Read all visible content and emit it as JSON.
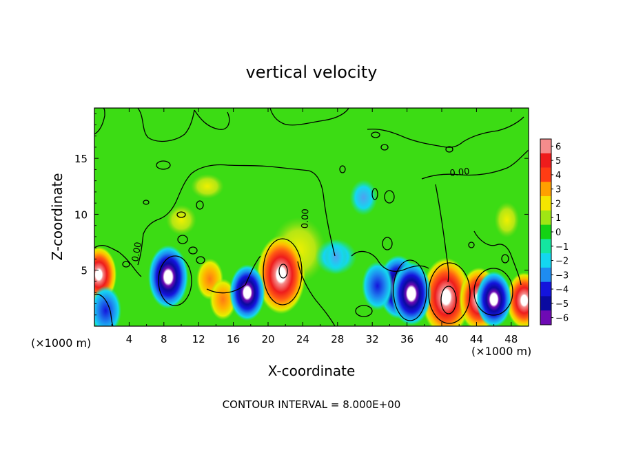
{
  "chart_data": {
    "type": "heatmap",
    "title": "vertical velocity",
    "xlabel": "X-coordinate",
    "ylabel": "Z-coordinate",
    "x_unit_left": "(×1000 m)",
    "x_unit_right": "(×1000 m)",
    "xlim": [
      0,
      50
    ],
    "ylim": [
      0,
      19.5
    ],
    "x_ticks": [
      4,
      8,
      12,
      16,
      20,
      24,
      28,
      32,
      36,
      40,
      44,
      48
    ],
    "x_tick_labels": [
      "4",
      "8",
      "12",
      "16",
      "20",
      "24",
      "28",
      "32",
      "36",
      "40",
      "44",
      "48"
    ],
    "y_ticks": [
      5,
      10,
      15
    ],
    "y_tick_labels": [
      "5",
      "10",
      "15"
    ],
    "contour_interval_text": "CONTOUR INTERVAL = 8.000E+00",
    "contour_labels": [
      {
        "text": "0.00",
        "x": 5.2,
        "y": 6.6,
        "rotate": -80
      },
      {
        "text": "0.00",
        "x": 24.6,
        "y": 9.6,
        "rotate": -88
      },
      {
        "text": "0.00",
        "x": 42.1,
        "y": 13.5,
        "rotate": -6
      }
    ],
    "colorbar": {
      "values": [
        6,
        5,
        4,
        3,
        2,
        1,
        0,
        -1,
        -2,
        -3,
        -4,
        -5,
        -6
      ],
      "labels": [
        "6",
        "5",
        "4",
        "3",
        "2",
        "1",
        "0",
        "−1",
        "−2",
        "−3",
        "−4",
        "−5",
        "−6"
      ],
      "colors": [
        "#f58c8c",
        "#ee1c1c",
        "#ff3c14",
        "#ffa000",
        "#f5e600",
        "#a0e614",
        "#14d214",
        "#14e6a0",
        "#14d7f0",
        "#1e8cf0",
        "#1414dc",
        "#0a0aa0",
        "#6e0ab4"
      ]
    },
    "features": [
      {
        "kind": "updraft",
        "x": 21.5,
        "y": 4.6,
        "w_max": 8
      },
      {
        "kind": "updraft",
        "x": 40.5,
        "y": 2.6,
        "w_max": 8
      },
      {
        "kind": "updraft",
        "x": 44.3,
        "y": 2.4,
        "w_max": 6
      },
      {
        "kind": "updraft",
        "x": 49.5,
        "y": 2.3,
        "w_max": 5
      },
      {
        "kind": "updraft",
        "x": 0.5,
        "y": 4.6,
        "w_max": 5
      },
      {
        "kind": "updraft",
        "x": 13.3,
        "y": 4.2,
        "w_max": 3
      },
      {
        "kind": "updraft",
        "x": 14.8,
        "y": 2.4,
        "w_max": 3
      },
      {
        "kind": "downdraft",
        "x": 8.5,
        "y": 4.4,
        "w_max": -6
      },
      {
        "kind": "downdraft",
        "x": 35.0,
        "y": 3.5,
        "w_max": -6
      },
      {
        "kind": "downdraft",
        "x": 36.5,
        "y": 2.9,
        "w_max": -6
      },
      {
        "kind": "downdraft",
        "x": 46.0,
        "y": 2.4,
        "w_max": -5
      },
      {
        "kind": "downdraft",
        "x": 17.6,
        "y": 3.0,
        "w_max": -5
      },
      {
        "kind": "downdraft",
        "x": 32.6,
        "y": 3.6,
        "w_max": -4
      },
      {
        "kind": "downdraft",
        "x": 1.3,
        "y": 1.4,
        "w_max": -4
      },
      {
        "kind": "downdraft",
        "x": 27.8,
        "y": 6.2,
        "w_max": -2
      }
    ]
  }
}
